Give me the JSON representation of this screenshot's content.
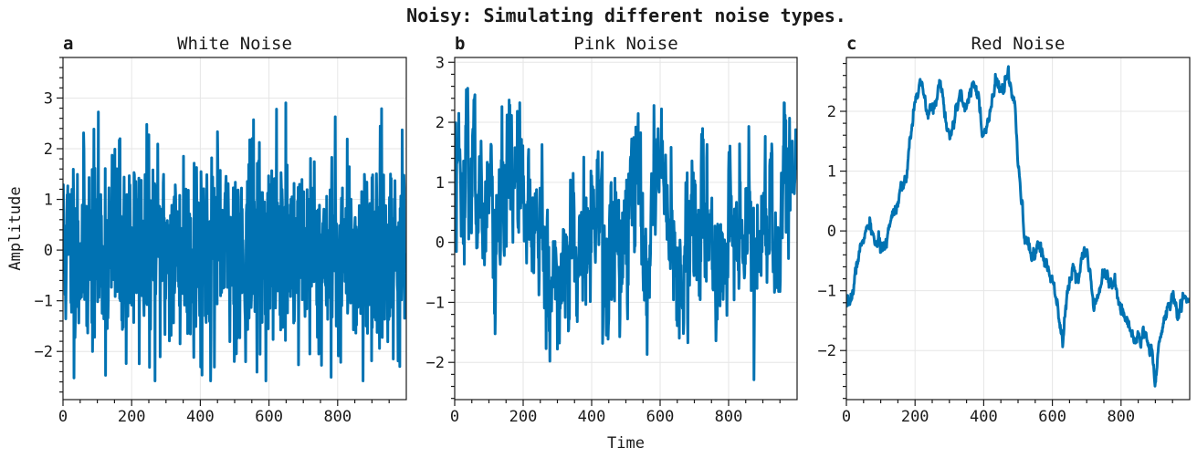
{
  "figure_title": "Noisy: Simulating different noise types.",
  "chart_data": [
    {
      "type": "line",
      "letter": "a",
      "title": "White Noise",
      "xlabel": "",
      "ylabel": "Amplitude",
      "xlim": [
        0,
        1000
      ],
      "ylim": [
        -2.95,
        3.8
      ],
      "xticks": [
        0,
        200,
        400,
        600,
        800
      ],
      "yticks": [
        -2,
        -1,
        0,
        1,
        2,
        3
      ],
      "grid": true,
      "color": "#0072b2",
      "n_points": 1000,
      "series_summary": {
        "kind": "white",
        "mean": 0.0,
        "std": 1.0,
        "min": -2.58,
        "max": 3.52
      }
    },
    {
      "type": "line",
      "letter": "b",
      "title": "Pink Noise",
      "xlabel": "Time",
      "ylabel": "",
      "xlim": [
        0,
        1000
      ],
      "ylim": [
        -2.62,
        3.08
      ],
      "xticks": [
        0,
        200,
        400,
        600,
        800
      ],
      "yticks": [
        -2,
        -1,
        0,
        1,
        2,
        3
      ],
      "grid": true,
      "color": "#0072b2",
      "n_points": 1000,
      "series_summary": {
        "kind": "pink",
        "mean": 0.3,
        "min": -2.35,
        "max": 2.88
      }
    },
    {
      "type": "line",
      "letter": "c",
      "title": "Red Noise",
      "xlabel": "",
      "ylabel": "",
      "xlim": [
        0,
        1000
      ],
      "ylim": [
        -2.82,
        2.9
      ],
      "xticks": [
        0,
        200,
        400,
        600,
        800
      ],
      "yticks": [
        -2,
        -1,
        0,
        1,
        2
      ],
      "grid": true,
      "color": "#0072b2",
      "n_points": 1000,
      "anchors": [
        [
          0,
          -1.35
        ],
        [
          20,
          -1.0
        ],
        [
          30,
          -0.55
        ],
        [
          50,
          -0.1
        ],
        [
          70,
          0.1
        ],
        [
          80,
          -0.15
        ],
        [
          100,
          -0.25
        ],
        [
          110,
          -0.35
        ],
        [
          130,
          0.25
        ],
        [
          150,
          0.5
        ],
        [
          160,
          0.8
        ],
        [
          175,
          0.8
        ],
        [
          185,
          1.5
        ],
        [
          200,
          2.25
        ],
        [
          210,
          2.4
        ],
        [
          225,
          2.3
        ],
        [
          235,
          1.9
        ],
        [
          250,
          2.1
        ],
        [
          265,
          2.2
        ],
        [
          275,
          2.55
        ],
        [
          285,
          2.0
        ],
        [
          300,
          1.5
        ],
        [
          310,
          1.75
        ],
        [
          320,
          2.0
        ],
        [
          335,
          2.3
        ],
        [
          345,
          2.0
        ],
        [
          360,
          2.3
        ],
        [
          370,
          2.55
        ],
        [
          385,
          2.25
        ],
        [
          395,
          1.55
        ],
        [
          410,
          1.7
        ],
        [
          425,
          2.15
        ],
        [
          435,
          2.5
        ],
        [
          450,
          2.35
        ],
        [
          470,
          2.6
        ],
        [
          490,
          2.1
        ],
        [
          500,
          1.1
        ],
        [
          520,
          -0.1
        ],
        [
          540,
          -0.45
        ],
        [
          560,
          -0.2
        ],
        [
          580,
          -0.55
        ],
        [
          600,
          -0.8
        ],
        [
          615,
          -1.15
        ],
        [
          630,
          -1.9
        ],
        [
          645,
          -0.95
        ],
        [
          660,
          -0.6
        ],
        [
          675,
          -0.8
        ],
        [
          690,
          -0.3
        ],
        [
          700,
          -0.35
        ],
        [
          720,
          -1.2
        ],
        [
          735,
          -1.0
        ],
        [
          750,
          -0.65
        ],
        [
          770,
          -0.85
        ],
        [
          790,
          -1.05
        ],
        [
          810,
          -1.45
        ],
        [
          840,
          -1.8
        ],
        [
          870,
          -1.75
        ],
        [
          890,
          -2.0
        ],
        [
          900,
          -2.5
        ],
        [
          910,
          -1.9
        ],
        [
          930,
          -1.4
        ],
        [
          950,
          -1.05
        ],
        [
          965,
          -1.4
        ],
        [
          980,
          -1.15
        ],
        [
          1000,
          -1.15
        ]
      ]
    }
  ]
}
